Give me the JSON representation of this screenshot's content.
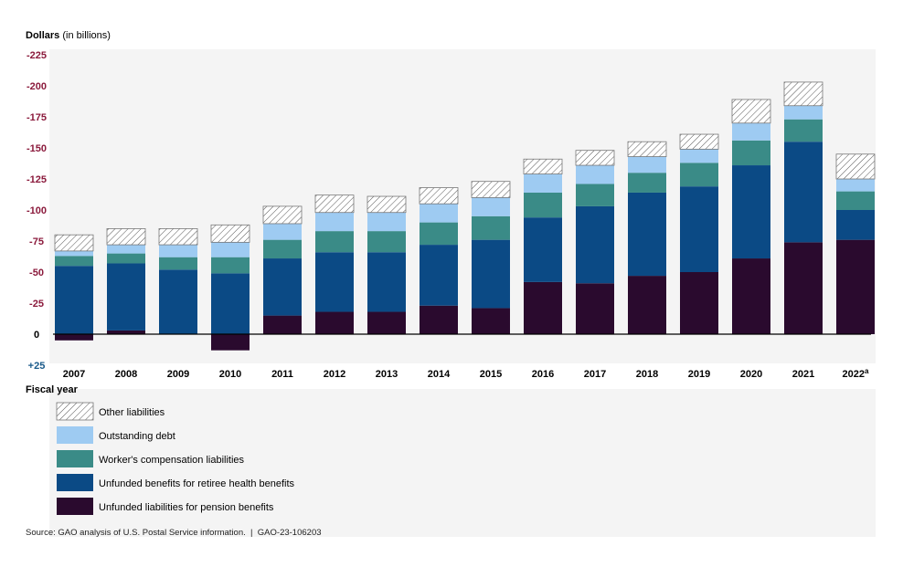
{
  "title_bold": "Dollars",
  "title_rest": " (in billions)",
  "x_axis_title": "Fiscal year",
  "source_text": "Source: GAO analysis of U.S. Postal Service information.",
  "report_id": "GAO-23-106203",
  "source_separator": "|",
  "colors": {
    "pension": "#2a0a2e",
    "health": "#0b4a85",
    "workers_comp": "#3a8b87",
    "debt": "#9ecbf2",
    "other_stroke": "#777777",
    "negative_tick": "#8b1a3c",
    "positive_tick": "#1a5a8a"
  },
  "chart_data": {
    "type": "bar",
    "stacked": true,
    "title": "Dollars (in billions)",
    "xlabel": "Fiscal year",
    "ylabel": "Dollars (in billions)",
    "ylim": [
      -225,
      25
    ],
    "y_inverted": true,
    "y_ticks": [
      -225,
      -200,
      -175,
      -150,
      -125,
      -100,
      -75,
      -50,
      -25,
      0,
      25
    ],
    "y_tick_labels": [
      "-225",
      "-200",
      "-175",
      "-150",
      "-125",
      "-100",
      "-75",
      "-50",
      "-25",
      "0",
      "+25"
    ],
    "categories": [
      "2007",
      "2008",
      "2009",
      "2010",
      "2011",
      "2012",
      "2013",
      "2014",
      "2015",
      "2016",
      "2017",
      "2018",
      "2019",
      "2020",
      "2021",
      "2022"
    ],
    "category_superscripts": [
      "",
      "",
      "",
      "",
      "",
      "",
      "",
      "",
      "",
      "",
      "",
      "",
      "",
      "",
      "",
      "a"
    ],
    "series": [
      {
        "key": "pension",
        "name": "Unfunded liabilities for pension benefits",
        "values": [
          5,
          -3,
          0,
          13,
          -15,
          -18,
          -18,
          -23,
          -21,
          -42,
          -41,
          -47,
          -50,
          -61,
          -74,
          -76
        ]
      },
      {
        "key": "health",
        "name": "Unfunded benefits for retiree health benefits",
        "values": [
          -55,
          -54,
          -52,
          -49,
          -46,
          -48,
          -48,
          -49,
          -55,
          -52,
          -62,
          -67,
          -69,
          -75,
          -81,
          -24
        ]
      },
      {
        "key": "workers_comp",
        "name": "Worker's compensation liabilities",
        "values": [
          -8,
          -8,
          -10,
          -13,
          -15,
          -17,
          -17,
          -18,
          -19,
          -20,
          -18,
          -16,
          -19,
          -20,
          -18,
          -15
        ]
      },
      {
        "key": "debt",
        "name": "Outstanding debt",
        "values": [
          -4,
          -7,
          -10,
          -12,
          -13,
          -15,
          -15,
          -15,
          -15,
          -15,
          -15,
          -13,
          -11,
          -14,
          -11,
          -10
        ]
      },
      {
        "key": "other",
        "name": "Other liabilities",
        "values": [
          -13,
          -13,
          -13,
          -14,
          -14,
          -14,
          -13,
          -13,
          -13,
          -12,
          -12,
          -12,
          -12,
          -19,
          -19,
          -20
        ]
      }
    ],
    "legend": {
      "placement": "bottom-left",
      "order": [
        "other",
        "debt",
        "workers_comp",
        "health",
        "pension"
      ],
      "labels": [
        "Other liabilities",
        "Outstanding debt",
        "Worker's compensation liabilities",
        "Unfunded benefits for retiree health benefits",
        "Unfunded liabilities for pension benefits"
      ]
    }
  }
}
